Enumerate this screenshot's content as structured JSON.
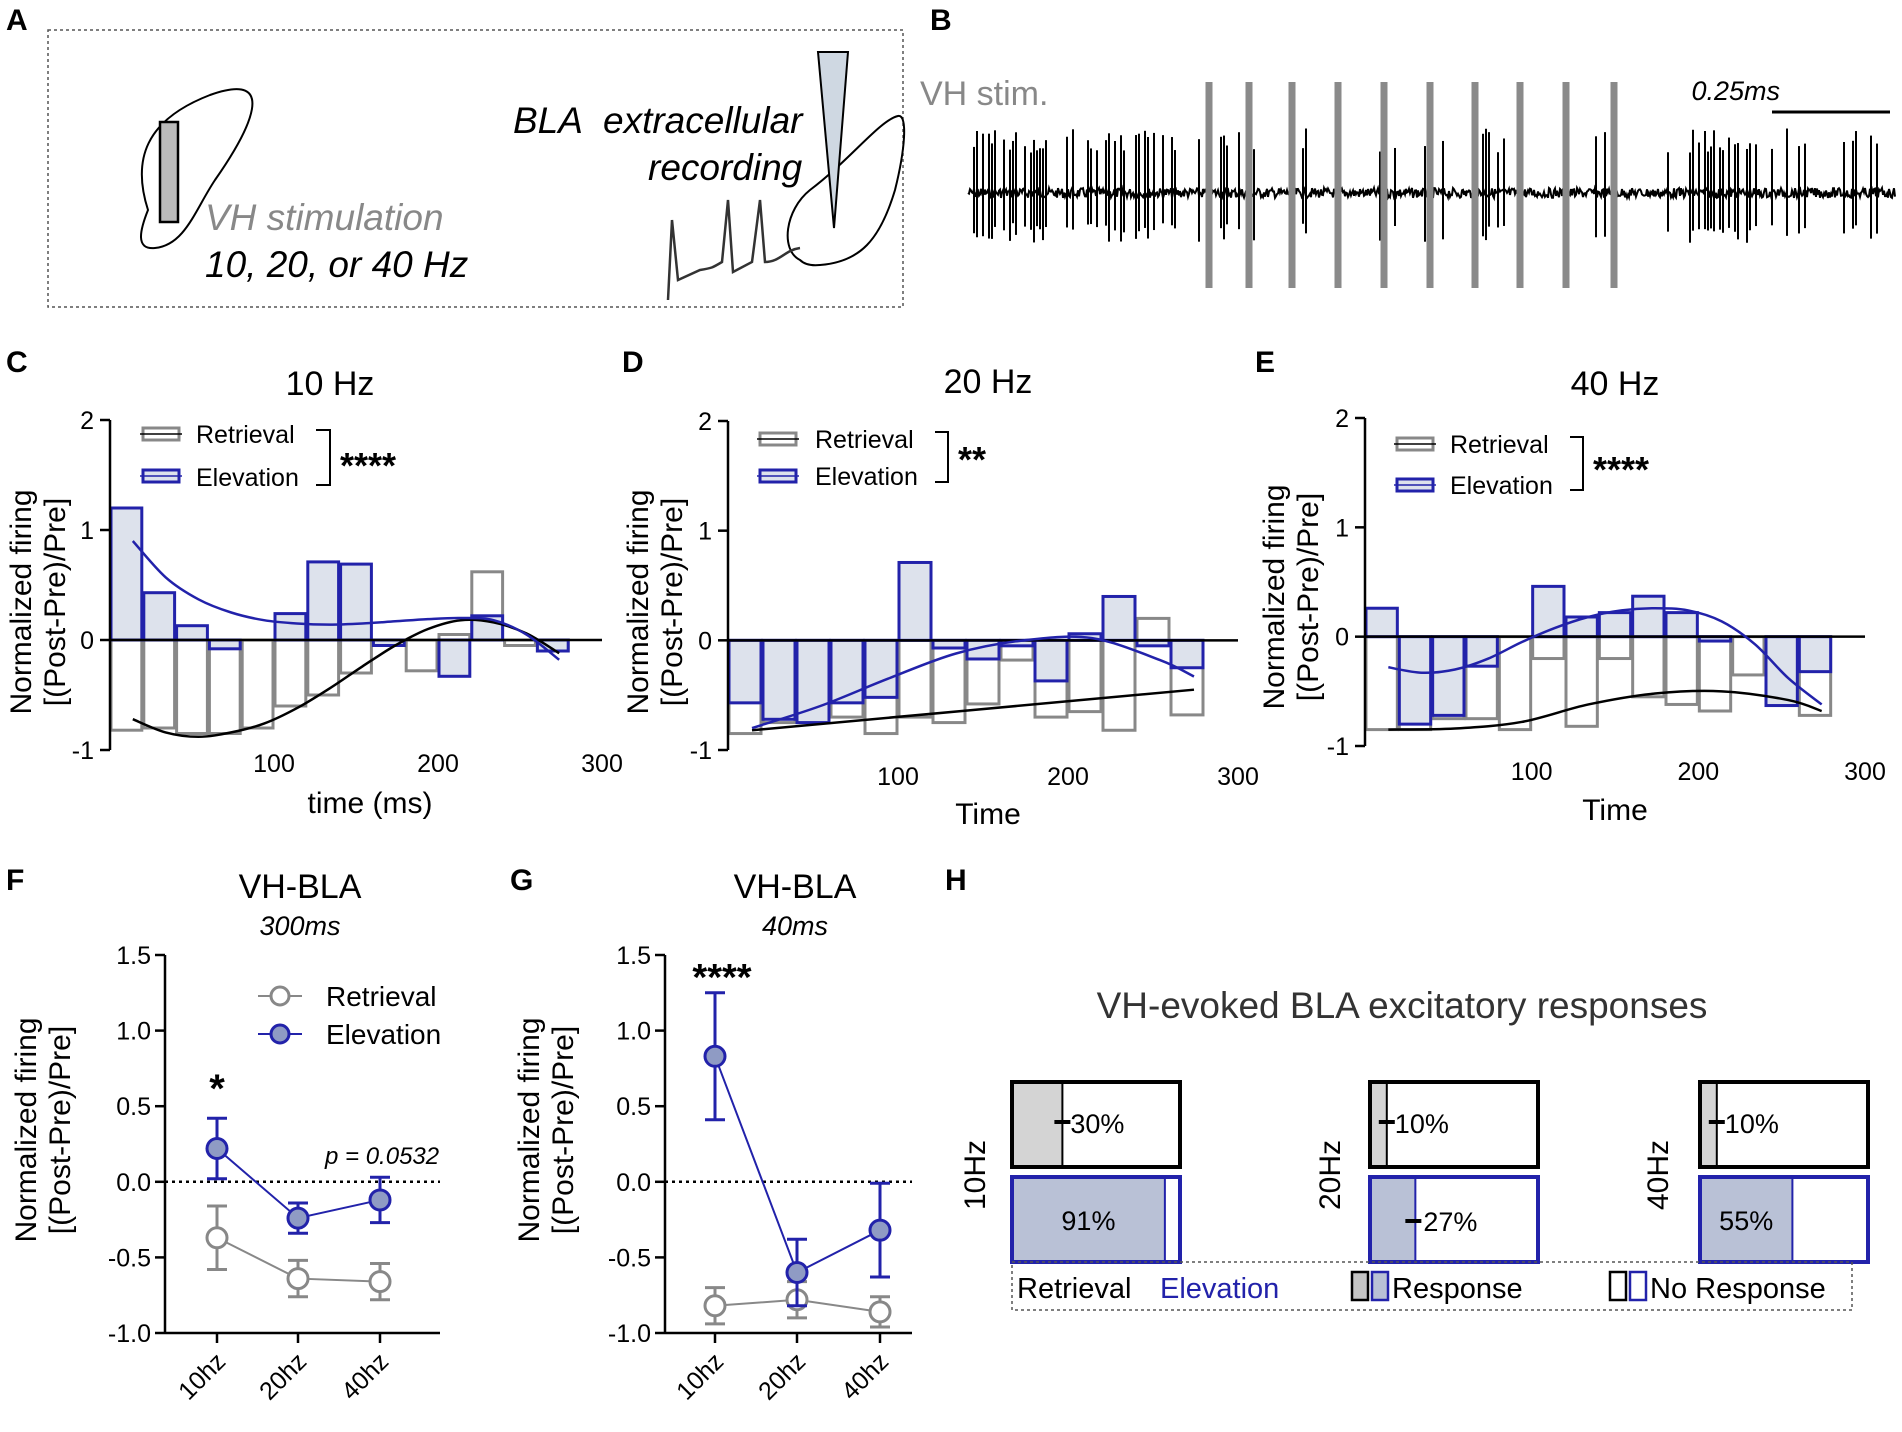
{
  "colors": {
    "retrieval": "#888888",
    "elevation": "#2222aa",
    "elevation_fill": "#dde2ec",
    "black": "#000000"
  },
  "panel_labels": {
    "A": "A",
    "B": "B",
    "C": "C",
    "D": "D",
    "E": "E",
    "F": "F",
    "G": "G",
    "H": "H"
  },
  "panel_A": {
    "stim_label": "VH stimulation",
    "freq_label": "10, 20, or 40 Hz",
    "rec_line1_a": "BLA",
    "rec_line1_b": "extracellular",
    "rec_line2": "recording"
  },
  "panel_B": {
    "stim_label": "VH stim.",
    "scale_label": "0.25ms"
  },
  "chart_data": [
    {
      "id": "C",
      "type": "bar",
      "title": "10 Hz",
      "xlabel": "time (ms)",
      "ylabel_line1": "Normalized firing",
      "ylabel_line2": "[(Post-Pre)/Pre]",
      "xlim": [
        0,
        300
      ],
      "ylim": [
        -1,
        2
      ],
      "xticks": [
        "100",
        "200",
        "300"
      ],
      "yticks": [
        "-1",
        "0",
        "1",
        "2"
      ],
      "legend": [
        "Retrieval",
        "Elevation"
      ],
      "significance": "****",
      "x": [
        20,
        40,
        60,
        80,
        100,
        120,
        140,
        160,
        180,
        200,
        220,
        240,
        260,
        280
      ],
      "series": [
        {
          "name": "Retrieval",
          "values": [
            -0.82,
            -0.8,
            -0.85,
            -0.85,
            -0.8,
            -0.6,
            -0.5,
            -0.3,
            0.0,
            -0.28,
            0.05,
            0.62,
            -0.05,
            -0.1
          ]
        },
        {
          "name": "Elevation",
          "values": [
            1.2,
            0.43,
            0.13,
            -0.08,
            0.0,
            0.24,
            0.71,
            0.69,
            -0.05,
            0.0,
            -0.33,
            0.22,
            0.0,
            -0.1
          ]
        }
      ],
      "fits": [
        {
          "name": "Retrieval",
          "x": [
            20,
            40,
            60,
            80,
            100,
            120,
            140,
            160,
            180,
            200,
            220,
            240,
            260,
            280
          ],
          "y": [
            -0.72,
            -0.84,
            -0.88,
            -0.84,
            -0.76,
            -0.62,
            -0.44,
            -0.24,
            -0.05,
            0.1,
            0.18,
            0.16,
            0.06,
            -0.12
          ]
        },
        {
          "name": "Elevation",
          "x": [
            20,
            40,
            60,
            80,
            100,
            120,
            140,
            160,
            180,
            200,
            220,
            240,
            260,
            280
          ],
          "y": [
            0.9,
            0.57,
            0.37,
            0.25,
            0.18,
            0.15,
            0.14,
            0.15,
            0.17,
            0.19,
            0.2,
            0.18,
            0.05,
            -0.18
          ]
        }
      ]
    },
    {
      "id": "D",
      "type": "bar",
      "title": "20 Hz",
      "xlabel": "Time",
      "ylabel_line1": "Normalized firing",
      "ylabel_line2": "[(Post-Pre)/Pre]",
      "xlim": [
        0,
        300
      ],
      "ylim": [
        -1,
        2
      ],
      "xticks": [
        "100",
        "200",
        "300"
      ],
      "yticks": [
        "-1",
        "0",
        "1",
        "2"
      ],
      "legend": [
        "Retrieval",
        "Elevation"
      ],
      "significance": "**",
      "x": [
        20,
        40,
        60,
        80,
        100,
        120,
        140,
        160,
        180,
        200,
        220,
        240,
        260,
        280
      ],
      "series": [
        {
          "name": "Retrieval",
          "values": [
            -0.85,
            -0.75,
            -0.75,
            -0.7,
            -0.85,
            -0.7,
            -0.75,
            -0.58,
            -0.18,
            -0.7,
            -0.65,
            -0.82,
            0.2,
            -0.68
          ]
        },
        {
          "name": "Elevation",
          "values": [
            -0.57,
            -0.72,
            -0.75,
            -0.57,
            -0.52,
            0.71,
            -0.07,
            -0.17,
            -0.05,
            -0.37,
            0.06,
            0.4,
            -0.05,
            -0.25
          ]
        }
      ],
      "fits": [
        {
          "name": "Retrieval",
          "x": [
            20,
            280
          ],
          "y": [
            -0.82,
            -0.45
          ]
        },
        {
          "name": "Elevation",
          "x": [
            20,
            60,
            100,
            140,
            180,
            220,
            260,
            280
          ],
          "y": [
            -0.8,
            -0.6,
            -0.35,
            -0.12,
            0.0,
            0.02,
            -0.18,
            -0.33
          ]
        }
      ]
    },
    {
      "id": "E",
      "type": "bar",
      "title": "40 Hz",
      "xlabel": "Time",
      "ylabel_line1": "Normalized firing",
      "ylabel_line2": "[(Post-Pre)/Pre]",
      "xlim": [
        0,
        300
      ],
      "ylim": [
        -1,
        2
      ],
      "xticks": [
        "100",
        "200",
        "300"
      ],
      "yticks": [
        "-1",
        "0",
        "1",
        "2"
      ],
      "legend": [
        "Retrieval",
        "Elevation"
      ],
      "significance": "****",
      "x": [
        20,
        40,
        60,
        80,
        100,
        120,
        140,
        160,
        180,
        200,
        220,
        240,
        260,
        280
      ],
      "series": [
        {
          "name": "Retrieval",
          "values": [
            -0.85,
            -0.85,
            -0.75,
            -0.75,
            -0.85,
            -0.2,
            -0.82,
            -0.2,
            -0.55,
            -0.62,
            -0.68,
            -0.35,
            -0.5,
            -0.72
          ]
        },
        {
          "name": "Elevation",
          "values": [
            0.26,
            -0.8,
            -0.72,
            -0.27,
            0.0,
            0.46,
            0.18,
            0.22,
            0.37,
            0.22,
            -0.04,
            0.0,
            -0.63,
            -0.32
          ]
        }
      ],
      "fits": [
        {
          "name": "Retrieval",
          "x": [
            20,
            60,
            100,
            140,
            180,
            220,
            260,
            280
          ],
          "y": [
            -0.85,
            -0.84,
            -0.78,
            -0.62,
            -0.52,
            -0.5,
            -0.58,
            -0.68
          ]
        },
        {
          "name": "Elevation",
          "x": [
            20,
            40,
            60,
            80,
            100,
            120,
            140,
            160,
            180,
            200,
            220,
            240,
            260,
            280
          ],
          "y": [
            -0.28,
            -0.33,
            -0.3,
            -0.2,
            -0.05,
            0.08,
            0.18,
            0.24,
            0.26,
            0.24,
            0.14,
            -0.07,
            -0.38,
            -0.62
          ]
        }
      ]
    },
    {
      "id": "F",
      "type": "line",
      "title": "VH-BLA",
      "subtitle": "300ms",
      "ylabel_line1": "Normalized firing",
      "ylabel_line2": "[(Post-Pre)/Pre]",
      "categories": [
        "10hz",
        "20hz",
        "40hz"
      ],
      "ylim": [
        -1.0,
        1.5
      ],
      "yticks": [
        "-1.0",
        "-0.5",
        "0.0",
        "0.5",
        "1.0",
        "1.5"
      ],
      "legend": [
        "Retrieval",
        "Elevation"
      ],
      "annotations": {
        "star": "*",
        "pvalue": "p = 0.0532"
      },
      "series": [
        {
          "name": "Retrieval",
          "values": [
            -0.37,
            -0.64,
            -0.66
          ],
          "errors": [
            0.21,
            0.12,
            0.12
          ]
        },
        {
          "name": "Elevation",
          "values": [
            0.22,
            -0.24,
            -0.12
          ],
          "errors": [
            0.2,
            0.1,
            0.15
          ]
        }
      ]
    },
    {
      "id": "G",
      "type": "line",
      "title": "VH-BLA",
      "subtitle": "40ms",
      "ylabel_line1": "Normalized firing",
      "ylabel_line2": "[(Post-Pre)/Pre]",
      "categories": [
        "10hz",
        "20hz",
        "40hz"
      ],
      "ylim": [
        -1.0,
        1.5
      ],
      "yticks": [
        "-1.0",
        "-0.5",
        "0.0",
        "0.5",
        "1.0",
        "1.5"
      ],
      "annotations": {
        "star": "****"
      },
      "series": [
        {
          "name": "Retrieval",
          "values": [
            -0.82,
            -0.78,
            -0.86
          ],
          "errors": [
            0.12,
            0.12,
            0.1
          ]
        },
        {
          "name": "Elevation",
          "values": [
            0.83,
            -0.6,
            -0.32
          ],
          "errors": [
            0.42,
            0.22,
            0.31
          ]
        }
      ]
    },
    {
      "id": "H",
      "type": "bar",
      "title": "VH-evoked BLA excitatory responses",
      "categories": [
        "10Hz",
        "20Hz",
        "40Hz"
      ],
      "series": [
        {
          "name": "Retrieval",
          "values": [
            30,
            10,
            10
          ]
        },
        {
          "name": "Elevation",
          "values": [
            91,
            27,
            55
          ]
        }
      ],
      "labels": {
        "Retrieval": [
          "30%",
          "10%",
          "10%"
        ],
        "Elevation": [
          "91%",
          "27%",
          "55%"
        ]
      },
      "legend": {
        "retrieval": "Retrieval",
        "elevation": "Elevation",
        "response": "Response",
        "no_response": "No Response"
      }
    }
  ]
}
